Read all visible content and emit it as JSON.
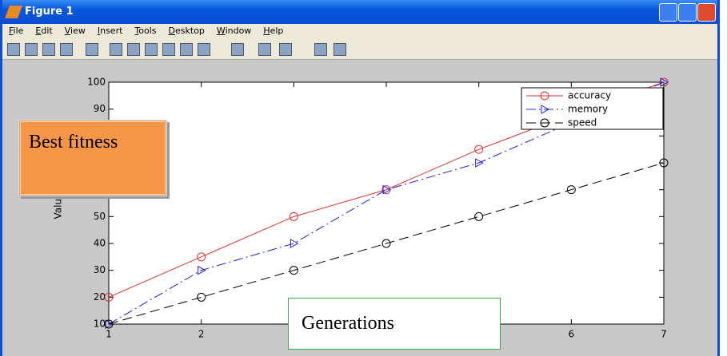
{
  "window": {
    "title": "Figure 1",
    "menu": [
      "File",
      "Edit",
      "View",
      "Insert",
      "Tools",
      "Desktop",
      "Window",
      "Help"
    ]
  },
  "chart_data": {
    "type": "line",
    "y_label": "Value",
    "x": [
      1,
      2,
      3,
      4,
      5,
      6,
      7
    ],
    "xlim": [
      1,
      7
    ],
    "xticks": [
      1,
      2,
      3,
      4,
      5,
      6,
      7
    ],
    "ylim": [
      10,
      100
    ],
    "yticks": [
      10,
      20,
      30,
      40,
      50,
      60,
      70,
      80,
      90,
      100
    ],
    "legend": "upper right",
    "series": [
      {
        "name": "accuracy",
        "color": "#e03030",
        "marker": "circle",
        "dash": "solid",
        "values": [
          20,
          35,
          50,
          60,
          75,
          88,
          100
        ]
      },
      {
        "name": "memory",
        "color": "#2020e0",
        "marker": "triangle-right",
        "dash": "dashdot",
        "values": [
          10,
          30,
          40,
          60,
          70,
          85,
          100
        ]
      },
      {
        "name": "speed",
        "color": "#000000",
        "marker": "circle",
        "dash": "dashed",
        "values": [
          10,
          20,
          30,
          40,
          50,
          60,
          70
        ]
      }
    ],
    "annotations": [
      "Best fitness",
      "Generations"
    ]
  }
}
